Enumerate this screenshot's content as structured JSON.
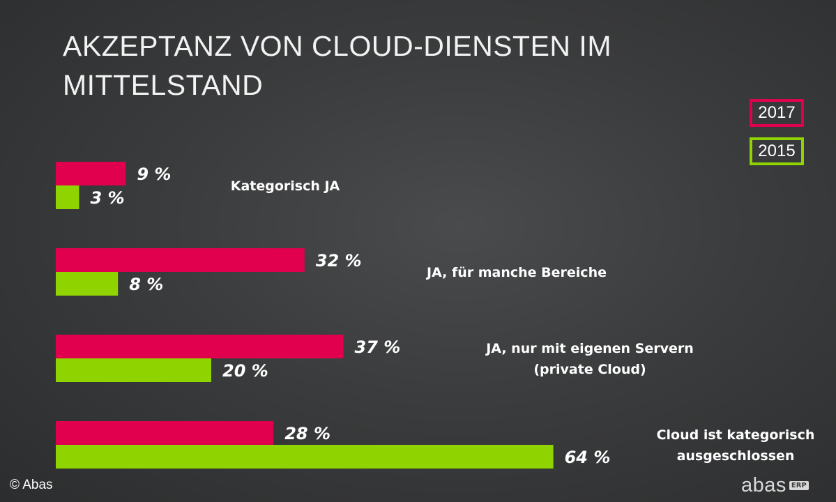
{
  "chart_data": {
    "type": "bar",
    "orientation": "horizontal",
    "title": "AKZEPTANZ VON CLOUD-DIENSTEN IM MITTELSTAND",
    "categories": [
      [
        "Kategorisch JA"
      ],
      [
        "JA, für manche Bereiche"
      ],
      [
        "JA, nur mit eigenen Servern",
        "(private Cloud)"
      ],
      [
        "Cloud ist kategorisch",
        "ausgeschlossen"
      ]
    ],
    "series": [
      {
        "name": "2017",
        "color": "#e0004d",
        "values": [
          9,
          32,
          37,
          28
        ],
        "labels": [
          "9 %",
          "32 %",
          "37 %",
          "28 %"
        ]
      },
      {
        "name": "2015",
        "color": "#8fd400",
        "values": [
          3,
          8,
          20,
          64
        ],
        "labels": [
          "3 %",
          "8 %",
          "20 %",
          "64 %"
        ]
      }
    ],
    "xlim": [
      0,
      100
    ],
    "grid": false,
    "legend": "top-right"
  },
  "footer": {
    "copyright": "© Abas",
    "logo_text": "abas",
    "logo_badge": "ERP"
  }
}
